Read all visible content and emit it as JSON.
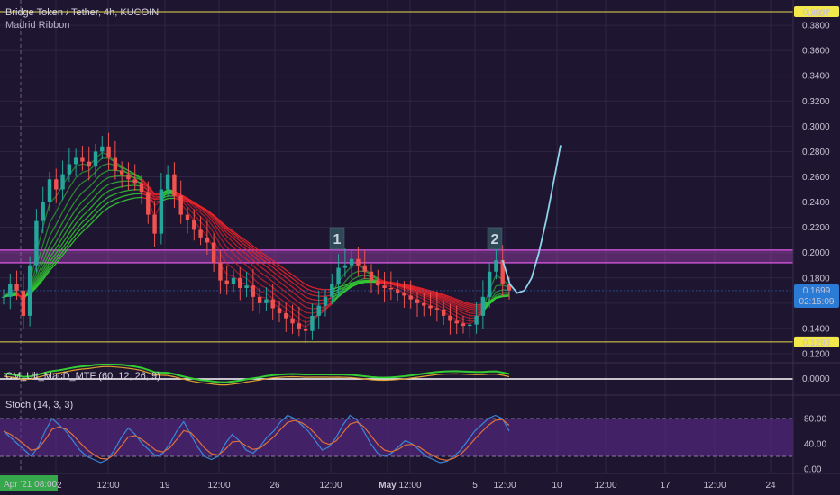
{
  "header": {
    "symbol_line": "Bridge Token / Tether, 4h, KUCOIN",
    "indicator_ribbon": "Madrid Ribbon",
    "indicator_macd": "CM_Ult_MacD_MTF (60, 12, 26, 9)",
    "indicator_stoch": "Stoch (14, 3, 3)",
    "currency": "USDT"
  },
  "price_tags": {
    "top_line": "0.3907",
    "current": "0.1699",
    "countdown": "02:15:09",
    "bottom_line": "0.1293"
  },
  "annotations": {
    "label_1": "1",
    "label_2": "2"
  },
  "time_tag": "Apr '21  08:00",
  "colors": {
    "background": "#1e1530",
    "grid": "#2f2545",
    "up": "#26a69a",
    "down": "#ef5350",
    "ribbon_green": "#33cc33",
    "ribbon_red": "#e8232a",
    "zone": "#c64fd0",
    "level_line": "#e6d94a",
    "projection": "#8fd3ea",
    "stoch_k": "#3a86d8",
    "stoch_d": "#e0703a",
    "stoch_band": "#5a2a8a",
    "macd_line": "#ffffff",
    "tag_yellow": "#f2e84b",
    "tag_blue": "#2a7bd5",
    "tag_green": "#36a74a"
  },
  "chart_data": [
    {
      "type": "candlestick",
      "title": "Bridge Token / Tether, 4h, KUCOIN",
      "ylabel": "USDT",
      "ylim": [
        0.115,
        0.4
      ],
      "y_ticks": [
        "0.3800",
        "0.3600",
        "0.3400",
        "0.3200",
        "0.3000",
        "0.2800",
        "0.2600",
        "0.2400",
        "0.2200",
        "0.2000",
        "0.1800",
        "0.1600",
        "0.1400",
        "0.1200"
      ],
      "x_ticks": [
        "12:00",
        "12",
        "12:00",
        "19",
        "12:00",
        "26",
        "12:00",
        "May",
        "12:00",
        "5",
        "12:00",
        "10",
        "12:00",
        "17",
        "12:00",
        "24"
      ],
      "horizontal_levels": [
        0.3907,
        0.1293
      ],
      "resistance_zone": [
        0.192,
        0.202
      ],
      "current_price": 0.1699,
      "close_path": [
        0.165,
        0.175,
        0.17,
        0.15,
        0.19,
        0.225,
        0.24,
        0.258,
        0.25,
        0.262,
        0.27,
        0.275,
        0.272,
        0.268,
        0.28,
        0.284,
        0.275,
        0.265,
        0.262,
        0.258,
        0.255,
        0.248,
        0.23,
        0.215,
        0.25,
        0.262,
        0.245,
        0.23,
        0.226,
        0.218,
        0.212,
        0.208,
        0.192,
        0.178,
        0.175,
        0.18,
        0.172,
        0.174,
        0.165,
        0.16,
        0.163,
        0.156,
        0.152,
        0.148,
        0.144,
        0.14,
        0.138,
        0.15,
        0.158,
        0.165,
        0.175,
        0.188,
        0.19,
        0.195,
        0.19,
        0.185,
        0.178,
        0.174,
        0.172,
        0.171,
        0.168,
        0.166,
        0.163,
        0.16,
        0.158,
        0.156,
        0.155,
        0.15,
        0.146,
        0.144,
        0.142,
        0.143,
        0.15,
        0.165,
        0.185,
        0.194,
        0.175,
        0.17
      ]
    },
    {
      "type": "line",
      "title": "Stoch (14, 3, 3)",
      "ylim": [
        0,
        100
      ],
      "y_ticks": [
        "80.00",
        "40.00",
        "0.00"
      ],
      "band": [
        20,
        80
      ],
      "k": [
        60,
        50,
        40,
        30,
        20,
        35,
        60,
        80,
        70,
        60,
        45,
        30,
        20,
        15,
        10,
        15,
        30,
        50,
        65,
        55,
        40,
        30,
        20,
        25,
        40,
        60,
        75,
        55,
        35,
        20,
        15,
        20,
        40,
        55,
        45,
        30,
        25,
        35,
        50,
        60,
        75,
        85,
        80,
        70,
        60,
        45,
        30,
        35,
        50,
        70,
        85,
        78,
        60,
        40,
        25,
        20,
        25,
        35,
        45,
        40,
        30,
        20,
        15,
        10,
        12,
        20,
        30,
        45,
        60,
        70,
        80,
        85,
        80,
        60
      ]
    }
  ],
  "projection": {
    "note": "",
    "values": [
      0.194,
      0.175,
      0.168,
      0.17,
      0.18,
      0.2,
      0.225,
      0.255,
      0.285
    ]
  }
}
